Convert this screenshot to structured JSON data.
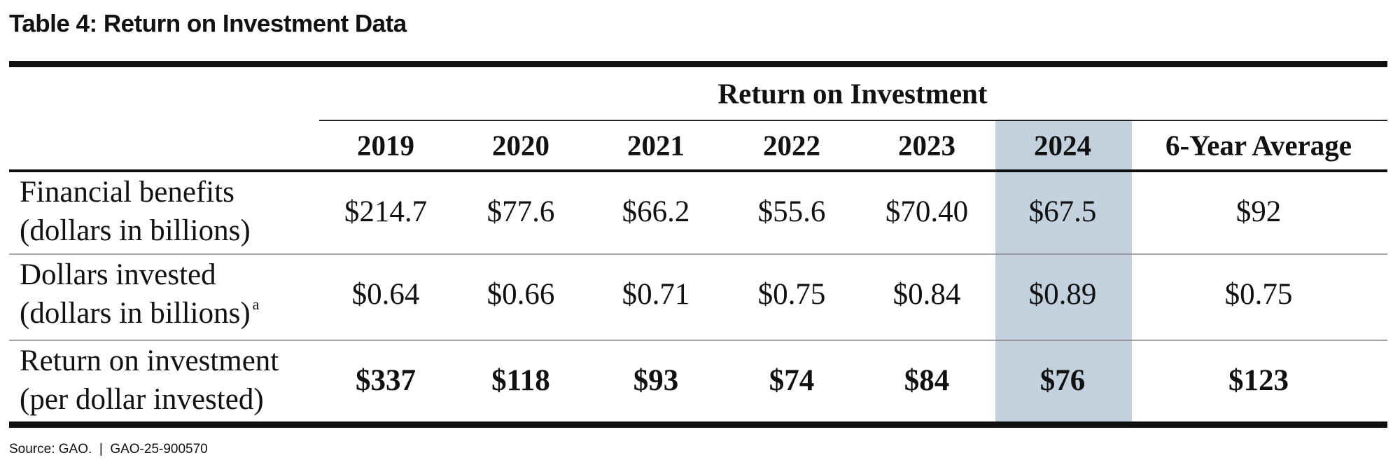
{
  "title": "Table 4: Return on Investment Data",
  "table": {
    "group_header": "Return on Investment",
    "columns": [
      "2019",
      "2020",
      "2021",
      "2022",
      "2023",
      "2024",
      "6-Year Average"
    ],
    "rows": [
      {
        "label": [
          "Financial benefits",
          "(dollars in billions)"
        ],
        "values": [
          "$214.7",
          "$77.6",
          "$66.2",
          "$55.6",
          "$70.40",
          "$67.5",
          "$92"
        ]
      },
      {
        "label": [
          "Dollars invested",
          "(dollars in billions)"
        ],
        "footnote_marker": "a",
        "values": [
          "$0.64",
          "$0.66",
          "$0.71",
          "$0.75",
          "$0.84",
          "$0.89",
          "$0.75"
        ]
      },
      {
        "label": [
          "Return on investment",
          "(per dollar invested)"
        ],
        "values": [
          "$337",
          "$118",
          "$93",
          "$74",
          "$84",
          "$76",
          "$123"
        ]
      }
    ]
  },
  "source": "Source: GAO.  |  GAO-25-900570"
}
